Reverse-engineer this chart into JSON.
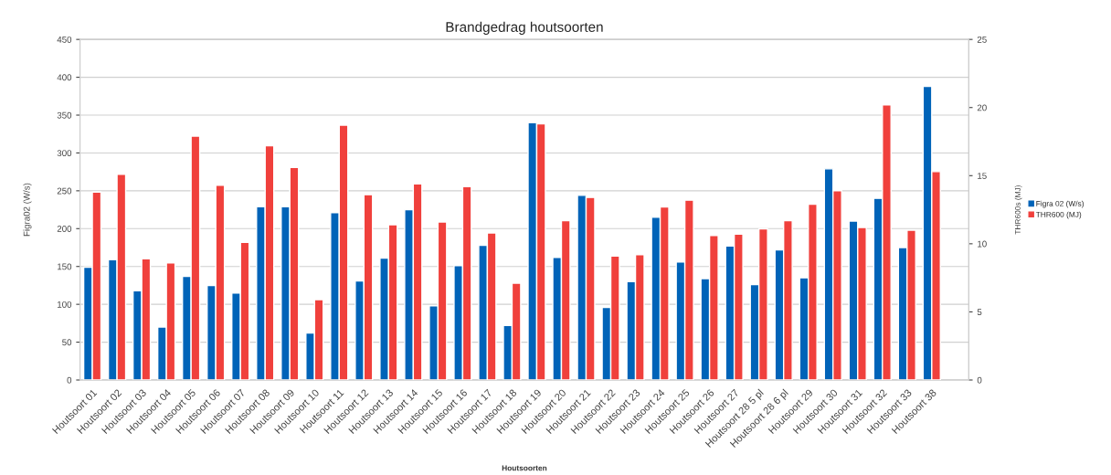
{
  "chart_data": {
    "type": "bar",
    "title": "Brandgedrag houtsoorten",
    "xlabel": "Houtsoorten",
    "ylabel": "Figra02 (W/s)",
    "y2label": "THR600s (MJ)",
    "categories": [
      "Houtsoort 01",
      "Houtsoort 02",
      "Houtsoort 03",
      "Houtsoort 04",
      "Houtsoort 05",
      "Houtsoort 06",
      "Houtsoort 07",
      "Houtsoort 08",
      "Houtsoort 09",
      "Houtsoort 10",
      "Houtsoort 11",
      "Houtsoort 12",
      "Houtsoort 13",
      "Houtsoort 14",
      "Houtsoort 15",
      "Houtsoort 16",
      "Houtsoort 17",
      "Houtsoort 18",
      "Houtsoort 19",
      "Houtsoort 20",
      "Houtsoort 21",
      "Houtsoort 22",
      "Houtsoort 23",
      "Houtsoort 24",
      "Houtsoort 25",
      "Houtsoort 26",
      "Houtsoort 27",
      "Houtsoort 28 5 pl",
      "Houtsoort 28 6 pl",
      "Houtsoort 29",
      "Houtsoort 30",
      "Houtsoort 31",
      "Houtsoort 32",
      "Houtsoort 33",
      "Houtsoort 38",
      null
    ],
    "series": [
      {
        "name": "Figra 02 (W/s)",
        "color": "#0063b8",
        "values": [
          149,
          159,
          118,
          70,
          137,
          125,
          115,
          229,
          229,
          62,
          221,
          131,
          161,
          225,
          98,
          151,
          178,
          72,
          340,
          162,
          244,
          96,
          130,
          215,
          156,
          134,
          177,
          126,
          172,
          135,
          279,
          210,
          240,
          175,
          388,
          null
        ]
      },
      {
        "name": "THR600 (MJ)",
        "color": "#f0403c",
        "axis": "y2",
        "values": [
          13.8,
          15.1,
          8.9,
          8.6,
          17.9,
          14.3,
          10.1,
          17.2,
          15.6,
          5.9,
          18.7,
          13.6,
          11.4,
          14.4,
          11.6,
          14.2,
          10.8,
          7.1,
          18.8,
          11.7,
          13.4,
          9.1,
          9.2,
          12.7,
          13.2,
          10.6,
          10.7,
          11.1,
          11.7,
          12.9,
          13.9,
          11.2,
          20.2,
          11.0,
          15.3,
          null
        ]
      }
    ],
    "ylim": [
      0,
      450
    ],
    "yticks": [
      0,
      50,
      100,
      150,
      200,
      250,
      300,
      350,
      400,
      450
    ],
    "y2lim": [
      0,
      25
    ],
    "y2ticks": [
      0,
      5,
      10,
      15,
      20,
      25
    ],
    "grid": "y",
    "legend": "right"
  }
}
